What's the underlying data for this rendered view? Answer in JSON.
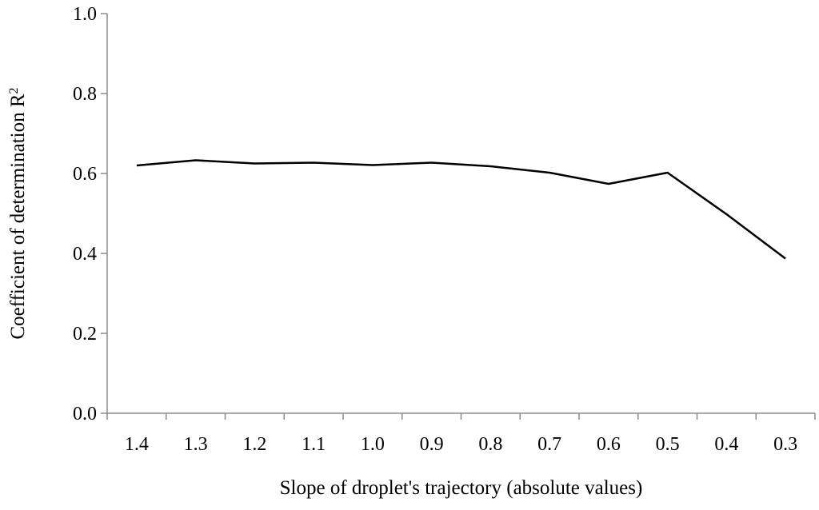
{
  "chart_data": {
    "type": "line",
    "title": "",
    "xlabel": "Slope of droplet's trajectory (absolute values)",
    "ylabel_main": "Coefficient of determination R",
    "ylabel_superscript": "2",
    "categories": [
      "1.4",
      "1.3",
      "1.2",
      "1.1",
      "1.0",
      "0.9",
      "0.8",
      "0.7",
      "0.6",
      "0.5",
      "0.4",
      "0.3"
    ],
    "y_tick_labels": [
      "0.0",
      "0.2",
      "0.4",
      "0.6",
      "0.8",
      "1.0"
    ],
    "ylim": [
      0,
      1
    ],
    "grid": false,
    "legend": "none",
    "series": [
      {
        "color": "#000000",
        "values": [
          0.62,
          0.633,
          0.625,
          0.627,
          0.621,
          0.627,
          0.618,
          0.602,
          0.574,
          0.602,
          0.498,
          0.387
        ]
      }
    ]
  }
}
